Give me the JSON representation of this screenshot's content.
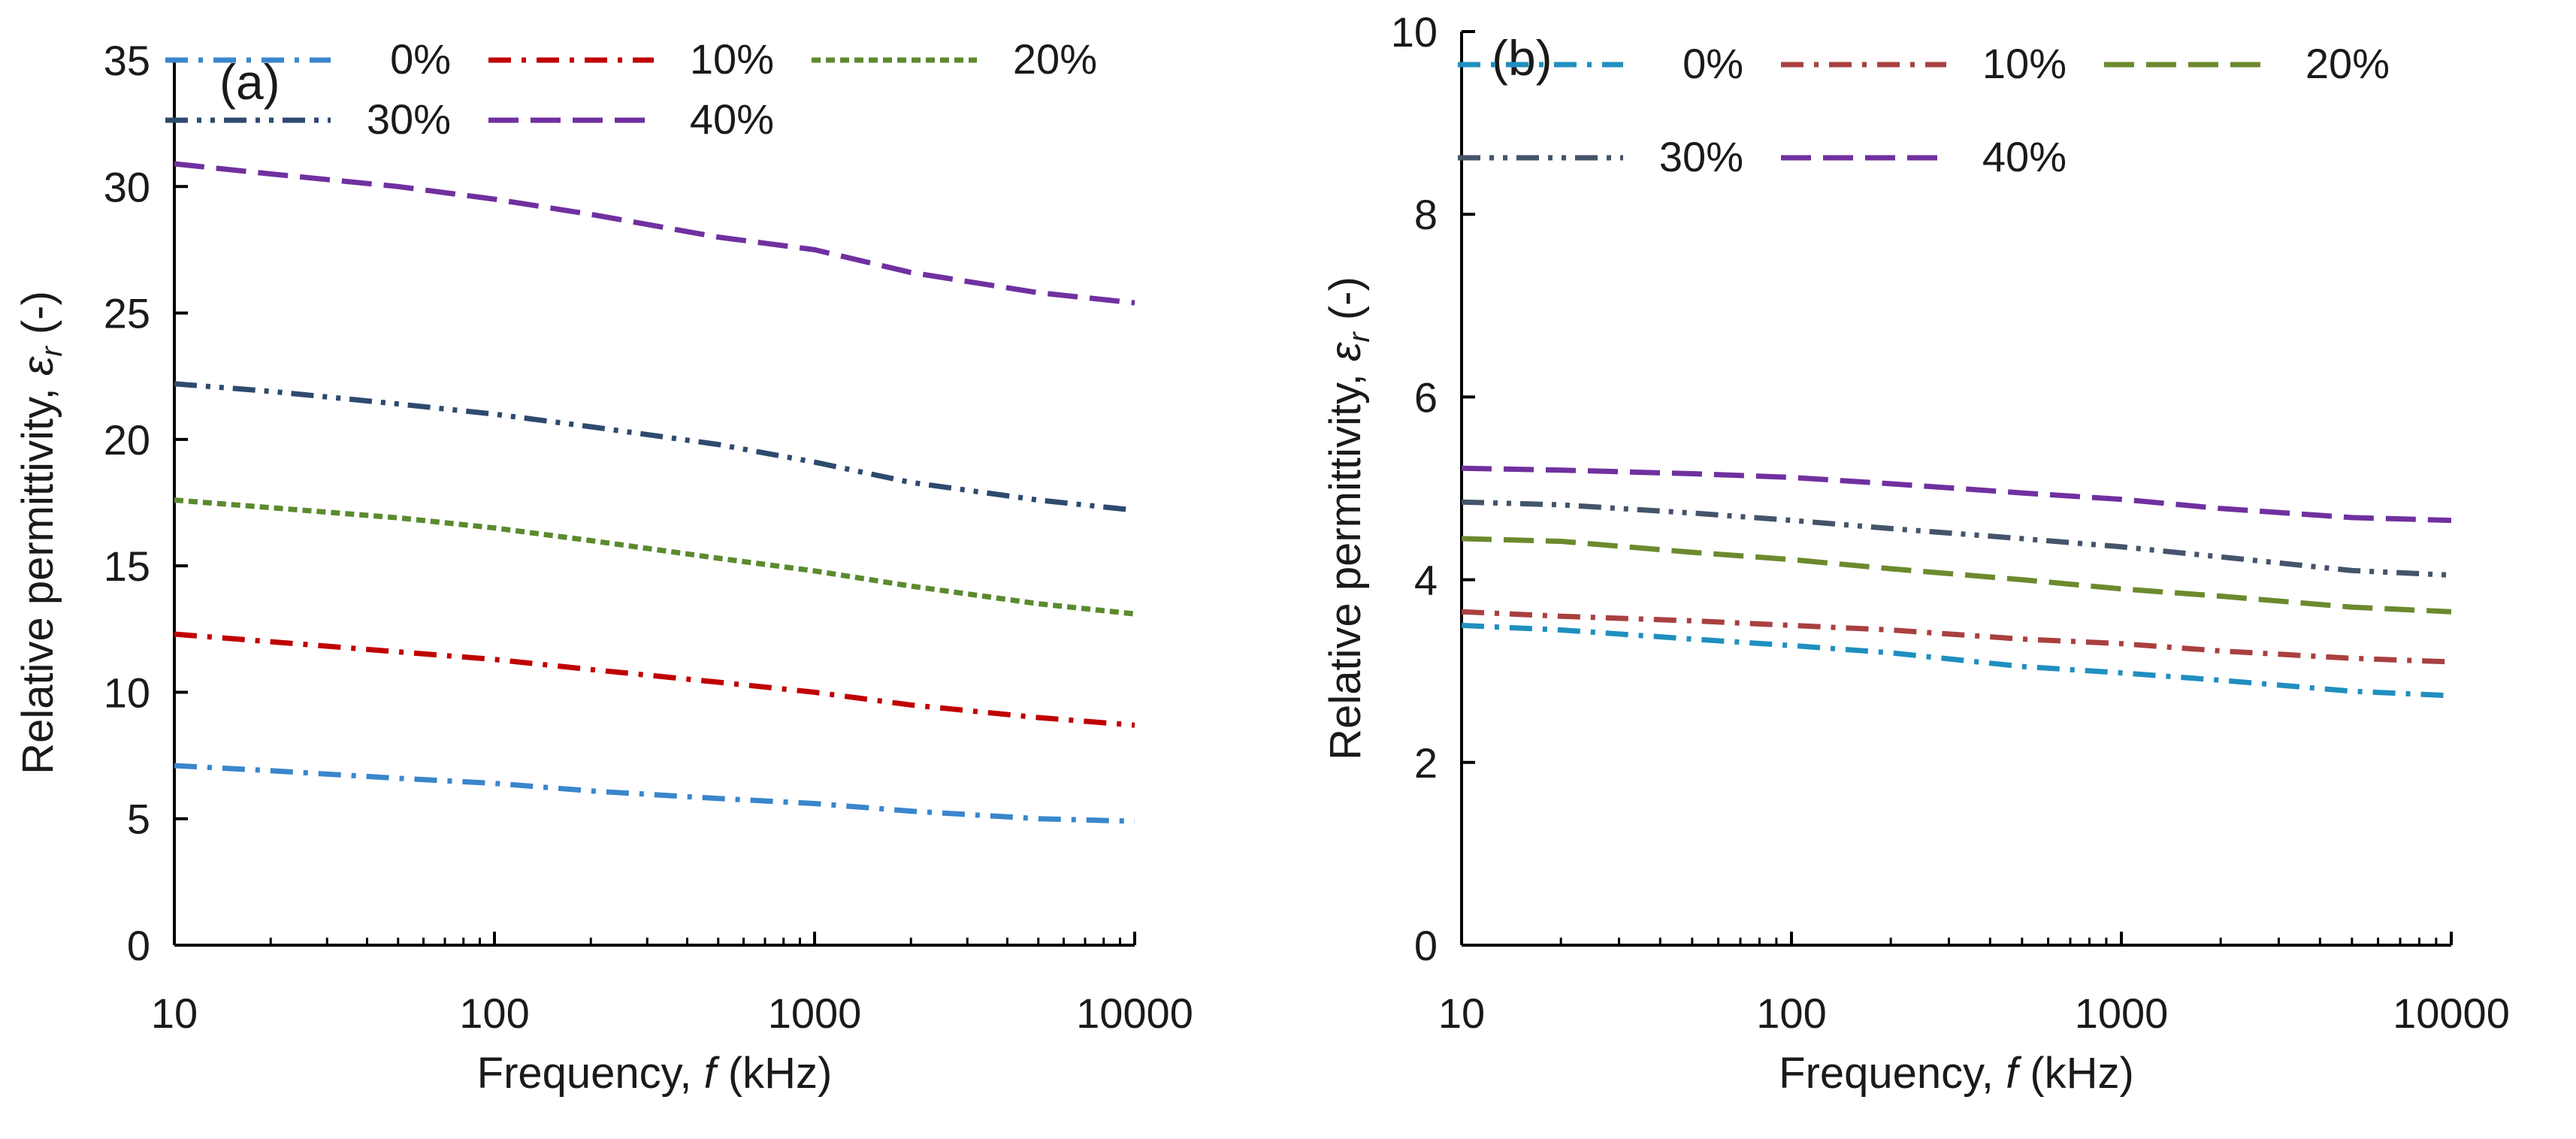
{
  "figure": {
    "panels": [
      "a",
      "b"
    ]
  },
  "chart_data": [
    {
      "type": "line",
      "panel_label": "(a)",
      "xlabel": {
        "prefix": "Frequency, ",
        "var": "f",
        "suffix": " (kHz)"
      },
      "ylabel": {
        "prefix": "Relative permittivity, ",
        "var": "ε",
        "sub": "r",
        "suffix": " (-)"
      },
      "x_scale": "log",
      "xlim": [
        10,
        10000
      ],
      "ylim": [
        0,
        35
      ],
      "x_ticks": [
        10,
        100,
        1000,
        10000
      ],
      "x_tick_labels": [
        "10",
        "100",
        "1000",
        "10000"
      ],
      "y_ticks": [
        0,
        5,
        10,
        15,
        20,
        25,
        30,
        35
      ],
      "y_tick_labels": [
        "0",
        "5",
        "10",
        "15",
        "20",
        "25",
        "30",
        "35"
      ],
      "x": [
        10,
        20,
        50,
        100,
        200,
        500,
        1000,
        2000,
        5000,
        10000
      ],
      "series": [
        {
          "name": "0%",
          "color": "#3a86cc",
          "dash": "dashdot",
          "values": [
            7.1,
            6.9,
            6.6,
            6.4,
            6.1,
            5.8,
            5.6,
            5.3,
            5.0,
            4.9
          ]
        },
        {
          "name": "10%",
          "color": "#c00000",
          "dash": "dashdot",
          "values": [
            12.3,
            12.0,
            11.6,
            11.3,
            10.9,
            10.4,
            10.0,
            9.5,
            9.0,
            8.7
          ]
        },
        {
          "name": "20%",
          "color": "#5b8a2e",
          "dash": "dotted",
          "values": [
            17.6,
            17.3,
            16.9,
            16.5,
            16.0,
            15.3,
            14.8,
            14.2,
            13.5,
            13.1
          ]
        },
        {
          "name": "30%",
          "color": "#2e4a6e",
          "dash": "dashdotdot",
          "values": [
            22.2,
            21.9,
            21.4,
            21.0,
            20.5,
            19.8,
            19.1,
            18.3,
            17.6,
            17.2
          ]
        },
        {
          "name": "40%",
          "color": "#7030a0",
          "dash": "dashed",
          "values": [
            30.9,
            30.5,
            30.0,
            29.5,
            28.9,
            28.0,
            27.5,
            26.6,
            25.8,
            25.4
          ]
        }
      ],
      "legend": {
        "location": "top",
        "columns": 3
      }
    },
    {
      "type": "line",
      "panel_label": "(b)",
      "xlabel": {
        "prefix": "Frequency, ",
        "var": "f",
        "suffix": " (kHz)"
      },
      "ylabel": {
        "prefix": "Relative permittivity, ",
        "var": "ε",
        "sub": "r",
        "suffix": " (-)"
      },
      "x_scale": "log",
      "xlim": [
        10,
        10000
      ],
      "ylim": [
        0,
        10
      ],
      "x_ticks": [
        10,
        100,
        1000,
        10000
      ],
      "x_tick_labels": [
        "10",
        "100",
        "1000",
        "10000"
      ],
      "y_ticks": [
        0,
        2,
        4,
        6,
        8,
        10
      ],
      "y_tick_labels": [
        "0",
        "2",
        "4",
        "6",
        "8",
        "10"
      ],
      "x": [
        10,
        20,
        50,
        100,
        200,
        500,
        1000,
        2000,
        5000,
        10000
      ],
      "series": [
        {
          "name": "0%",
          "color": "#1f8fbf",
          "dash": "dashdot",
          "values": [
            3.5,
            3.45,
            3.35,
            3.28,
            3.2,
            3.05,
            2.98,
            2.9,
            2.78,
            2.73
          ]
        },
        {
          "name": "10%",
          "color": "#a94040",
          "dash": "dashdot",
          "values": [
            3.65,
            3.6,
            3.55,
            3.5,
            3.45,
            3.35,
            3.3,
            3.22,
            3.14,
            3.1
          ]
        },
        {
          "name": "20%",
          "color": "#6b8a2e",
          "dash": "dashed",
          "values": [
            4.45,
            4.42,
            4.3,
            4.22,
            4.12,
            4.0,
            3.9,
            3.82,
            3.7,
            3.65
          ]
        },
        {
          "name": "30%",
          "color": "#44546a",
          "dash": "dashdotdot",
          "values": [
            4.85,
            4.82,
            4.73,
            4.65,
            4.56,
            4.45,
            4.36,
            4.25,
            4.1,
            4.05
          ]
        },
        {
          "name": "40%",
          "color": "#7030a0",
          "dash": "dashed",
          "values": [
            5.22,
            5.2,
            5.16,
            5.12,
            5.05,
            4.95,
            4.88,
            4.78,
            4.68,
            4.65
          ]
        }
      ],
      "legend": {
        "location": "top",
        "columns": 3
      }
    }
  ]
}
